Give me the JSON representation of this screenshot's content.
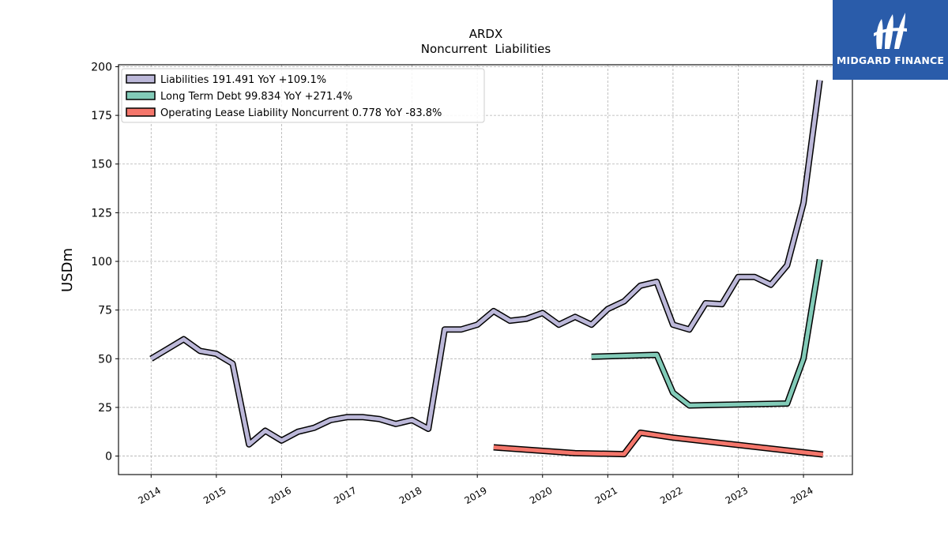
{
  "chart_data": {
    "type": "line",
    "title": "ARDX",
    "subtitle": "Noncurrent  Liabilities",
    "ylabel": "USDm",
    "xlabel": "",
    "xlim": [
      2013.5,
      2024.75
    ],
    "ylim": [
      -9.5,
      201
    ],
    "x_ticks": [
      2014,
      2015,
      2016,
      2017,
      2018,
      2019,
      2020,
      2021,
      2022,
      2023,
      2024
    ],
    "y_ticks": [
      0,
      25,
      50,
      75,
      100,
      125,
      150,
      175,
      200
    ],
    "grid": true,
    "legend_position": "top-left",
    "series": [
      {
        "name": "Liabilities",
        "legend": "Liabilities  191.491 YoY +109.1%",
        "color": "#bcb8d9",
        "points": [
          [
            2014.0,
            50
          ],
          [
            2014.25,
            55
          ],
          [
            2014.5,
            60
          ],
          [
            2014.75,
            54
          ],
          [
            2015.0,
            52.5
          ],
          [
            2015.25,
            47.5
          ],
          [
            2015.5,
            6
          ],
          [
            2015.75,
            13
          ],
          [
            2016.0,
            8
          ],
          [
            2016.25,
            12.5
          ],
          [
            2016.5,
            14.5
          ],
          [
            2016.75,
            18.5
          ],
          [
            2017.0,
            20
          ],
          [
            2017.25,
            20
          ],
          [
            2017.5,
            19
          ],
          [
            2017.75,
            16.5
          ],
          [
            2018.0,
            18.5
          ],
          [
            2018.25,
            14
          ],
          [
            2018.5,
            65
          ],
          [
            2018.75,
            65
          ],
          [
            2019.0,
            67.5
          ],
          [
            2019.25,
            74.5
          ],
          [
            2019.5,
            69.5
          ],
          [
            2019.75,
            70.5
          ],
          [
            2020.0,
            73.5
          ],
          [
            2020.25,
            67.5
          ],
          [
            2020.5,
            71.5
          ],
          [
            2020.75,
            67.5
          ],
          [
            2021.0,
            75.5
          ],
          [
            2021.25,
            79.5
          ],
          [
            2021.5,
            87.5
          ],
          [
            2021.75,
            89.5
          ],
          [
            2022.0,
            67.5
          ],
          [
            2022.25,
            65
          ],
          [
            2022.5,
            78.5
          ],
          [
            2022.75,
            78
          ],
          [
            2023.0,
            92
          ],
          [
            2023.25,
            92
          ],
          [
            2023.5,
            88
          ],
          [
            2023.75,
            98
          ],
          [
            2024.0,
            130
          ],
          [
            2024.25,
            193
          ]
        ]
      },
      {
        "name": "Long Term Debt",
        "legend": "Long Term Debt  99.834 YoY +271.4%",
        "color": "#82cbb8",
        "points": [
          [
            2020.75,
            51
          ],
          [
            2021.75,
            52
          ],
          [
            2022.0,
            32.5
          ],
          [
            2022.25,
            26
          ],
          [
            2023.75,
            27
          ],
          [
            2024.0,
            50
          ],
          [
            2024.25,
            101
          ]
        ]
      },
      {
        "name": "Operating Lease Liability Noncurrent",
        "legend": "Operating Lease Liability Noncurrent  0.778 YoY -83.8%",
        "color": "#f4766b",
        "points": [
          [
            2019.25,
            4.5
          ],
          [
            2020.5,
            1.5
          ],
          [
            2021.25,
            1
          ],
          [
            2021.5,
            12
          ],
          [
            2022.0,
            9.5
          ],
          [
            2024.3,
            0.8
          ]
        ]
      }
    ]
  },
  "logo": {
    "text": "MIDGARD FINANCE"
  }
}
